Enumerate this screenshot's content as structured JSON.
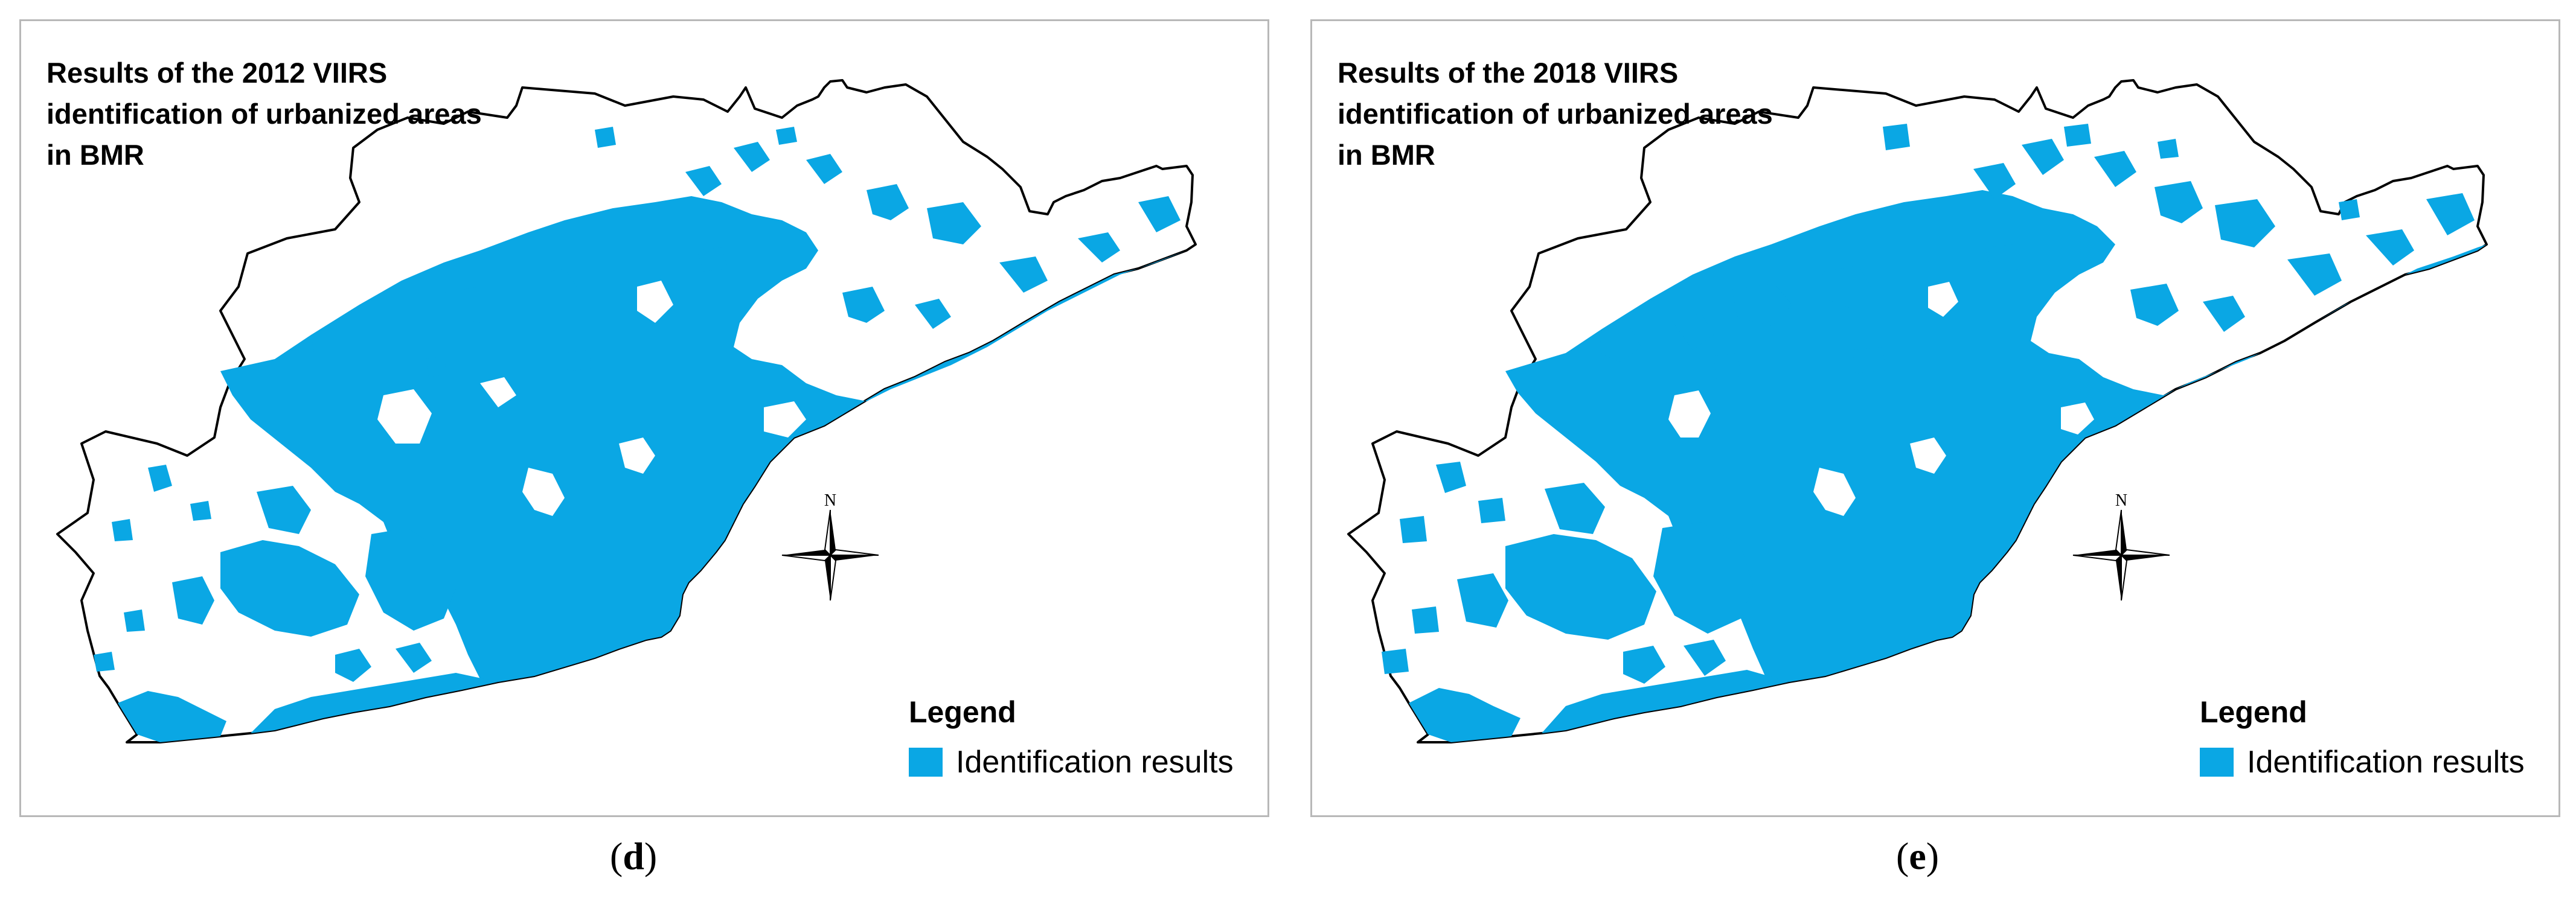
{
  "colors": {
    "urban": "#0aa7e4",
    "region_fill": "#ffffff",
    "boundary": "#000000",
    "panel_border": "#b8b8b8"
  },
  "panels": [
    {
      "title_lines": [
        "Results of the 2012 VIIRS",
        "identification of urbanized areas",
        "in BMR"
      ],
      "legend_title": "Legend",
      "legend_item": "Identification results",
      "compass_label": "N",
      "panel_label_open": "(",
      "panel_label_letter": "d",
      "panel_label_close": ")"
    },
    {
      "title_lines": [
        "Results of the 2018 VIIRS",
        "identification of urbanized areas",
        "in BMR"
      ],
      "legend_title": "Legend",
      "legend_item": "Identification results",
      "compass_label": "N",
      "panel_label_open": "(",
      "panel_label_letter": "e",
      "panel_label_close": ")"
    }
  ]
}
